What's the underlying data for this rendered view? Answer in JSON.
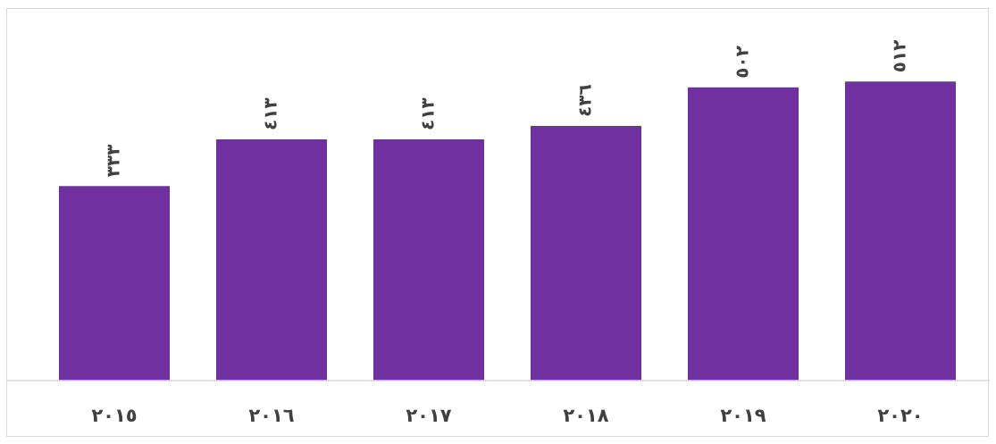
{
  "chart_data": {
    "type": "bar",
    "categories": [
      "٢٠١٥",
      "٢٠١٦",
      "٢٠١٧",
      "٢٠١٨",
      "٢٠١٩",
      "٢٠٢٠"
    ],
    "values": [
      333,
      413,
      413,
      436,
      502,
      512
    ],
    "value_labels": [
      "٣٣٣",
      "٤١٣",
      "٤١٣",
      "٤٣٦",
      "٥٠٢",
      "٥١٢"
    ],
    "title": "",
    "xlabel": "",
    "ylabel": "",
    "ylim": [
      0,
      560
    ],
    "grid": false,
    "legend": "none",
    "data_label_orientation": "rotated",
    "colors": {
      "bar": "#7030a0",
      "text": "#404040",
      "axis": "#d9d9d9"
    }
  }
}
